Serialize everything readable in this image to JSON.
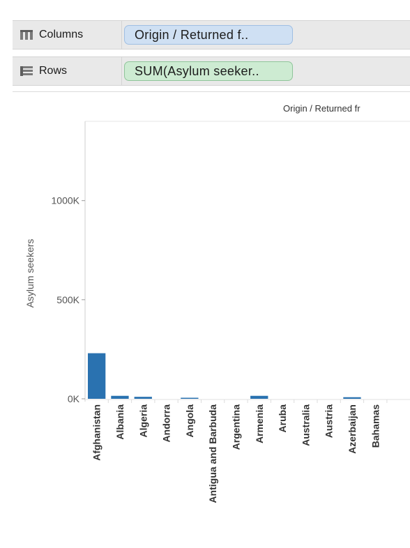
{
  "shelves": {
    "columns": {
      "label": "Columns",
      "icon": "columns-icon",
      "pill": "Origin / Returned f..",
      "pill_color": "#cfe0f3"
    },
    "rows": {
      "label": "Rows",
      "icon": "rows-icon",
      "pill": "SUM(Asylum seeker..",
      "pill_color": "#cdebd2"
    }
  },
  "chart_data": {
    "type": "bar",
    "header": "Origin / Returned fr",
    "ylabel": "Asylum seekers",
    "ylim": [
      0,
      1400000
    ],
    "yticks": [
      {
        "value": 0,
        "label": "0K"
      },
      {
        "value": 500000,
        "label": "500K"
      },
      {
        "value": 1000000,
        "label": "1000K"
      }
    ],
    "categories": [
      "Afghanistan",
      "Albania",
      "Algeria",
      "Andorra",
      "Angola",
      "Antigua and Barbuda",
      "Argentina",
      "Armenia",
      "Aruba",
      "Australia",
      "Austria",
      "Azerbaijan",
      "Bahamas"
    ],
    "values": [
      230000,
      15000,
      10000,
      0,
      3000,
      0,
      0,
      15000,
      0,
      0,
      0,
      8000,
      0
    ],
    "bar_color": "#2a72b0",
    "grid": false
  }
}
